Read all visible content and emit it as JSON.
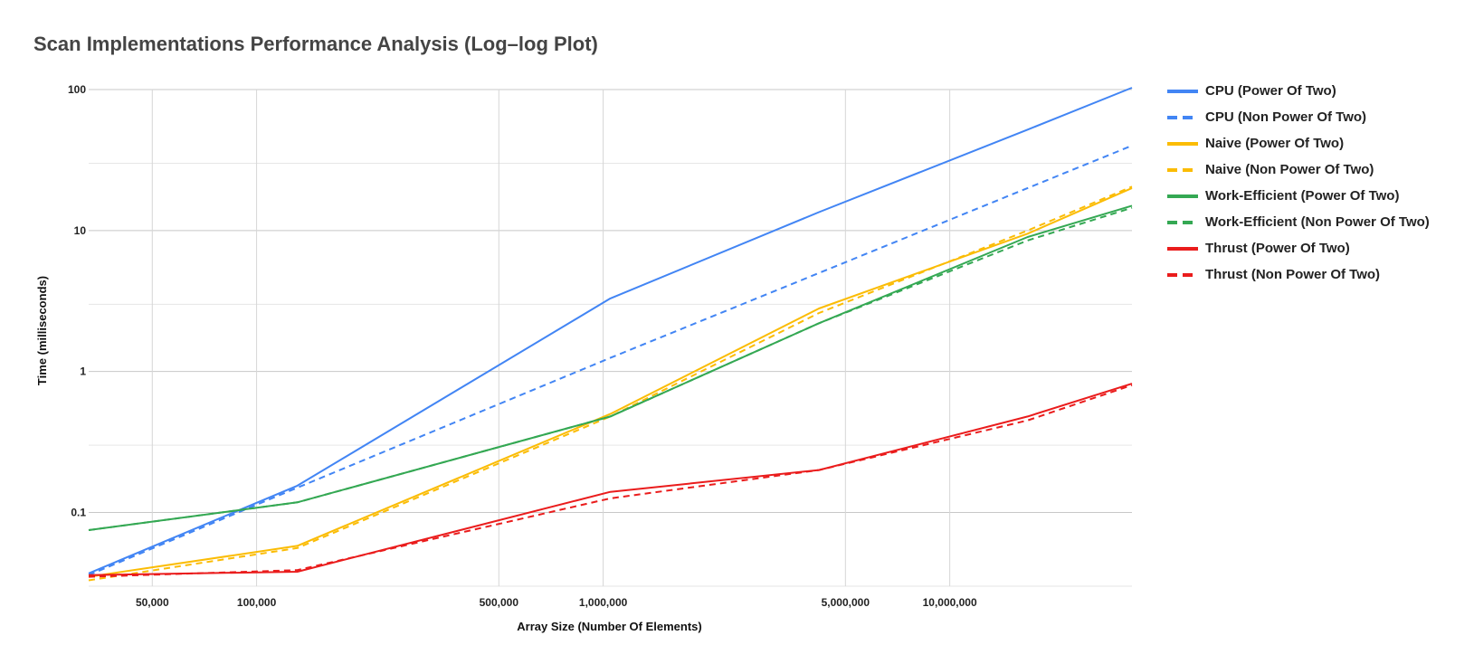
{
  "chart_data": {
    "type": "line",
    "title": "Scan Implementations Performance Analysis (Log–log Plot)",
    "xlabel": "Array Size (Number Of Elements)",
    "ylabel": "Time (milliseconds)",
    "x_scale": "log",
    "y_scale": "log",
    "xlim": [
      32768,
      33554432
    ],
    "ylim": [
      0.03,
      100
    ],
    "grid": true,
    "legend_position": "right",
    "x_ticks": [
      {
        "value": 50000,
        "label": "50,000"
      },
      {
        "value": 100000,
        "label": "100,000"
      },
      {
        "value": 500000,
        "label": "500,000"
      },
      {
        "value": 1000000,
        "label": "1,000,000"
      },
      {
        "value": 5000000,
        "label": "5,000,000"
      },
      {
        "value": 10000000,
        "label": "10,000,000"
      }
    ],
    "y_ticks": [
      {
        "value": 0.1,
        "label": "0.1"
      },
      {
        "value": 1,
        "label": "1"
      },
      {
        "value": 10,
        "label": "10"
      },
      {
        "value": 100,
        "label": "100"
      }
    ],
    "x": [
      32768,
      131072,
      1048576,
      4194304,
      16777216,
      33554432
    ],
    "series": [
      {
        "name": "CPU (Power Of Two)",
        "color": "#4285f4",
        "dashed": false,
        "values": [
          0.037,
          0.155,
          3.3,
          13.5,
          52,
          103
        ]
      },
      {
        "name": "CPU (Non Power Of Two)",
        "color": "#4285f4",
        "dashed": true,
        "values": [
          0.036,
          0.15,
          1.25,
          5.0,
          20,
          40
        ]
      },
      {
        "name": "Naive (Power Of Two)",
        "color": "#fbbc04",
        "dashed": false,
        "values": [
          0.035,
          0.058,
          0.5,
          2.8,
          9.5,
          20
        ]
      },
      {
        "name": "Naive (Non Power Of Two)",
        "color": "#fbbc04",
        "dashed": true,
        "values": [
          0.033,
          0.056,
          0.48,
          2.6,
          10,
          20.5
        ]
      },
      {
        "name": "Work-Efficient (Power Of Two)",
        "color": "#34a853",
        "dashed": false,
        "values": [
          0.075,
          0.118,
          0.48,
          2.2,
          9.0,
          15
        ]
      },
      {
        "name": "Work-Efficient (Non Power Of Two)",
        "color": "#34a853",
        "dashed": true,
        "values": [
          0.075,
          0.118,
          0.48,
          2.2,
          8.5,
          14.5
        ]
      },
      {
        "name": "Thrust (Power Of Two)",
        "color": "#ea1c1c",
        "dashed": false,
        "values": [
          0.036,
          0.038,
          0.14,
          0.2,
          0.48,
          0.82
        ]
      },
      {
        "name": "Thrust (Non Power Of Two)",
        "color": "#ea1c1c",
        "dashed": true,
        "values": [
          0.035,
          0.039,
          0.126,
          0.2,
          0.45,
          0.8
        ]
      }
    ]
  }
}
